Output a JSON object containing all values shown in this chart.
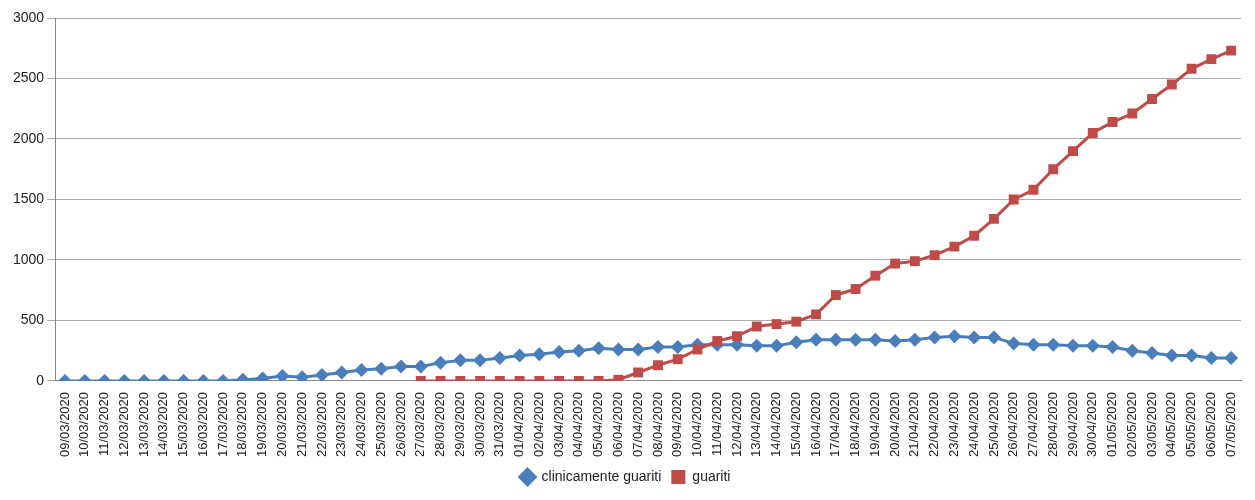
{
  "chart_data": {
    "type": "line",
    "categories": [
      "09/03/2020",
      "10/03/2020",
      "11/03/2020",
      "12/03/2020",
      "13/03/2020",
      "14/03/2020",
      "15/03/2020",
      "16/03/2020",
      "17/03/2020",
      "18/03/2020",
      "19/03/2020",
      "20/03/2020",
      "21/03/2020",
      "22/03/2020",
      "23/03/2020",
      "24/03/2020",
      "25/03/2020",
      "26/03/2020",
      "27/03/2020",
      "28/03/2020",
      "29/03/2020",
      "30/03/2020",
      "31/03/2020",
      "01/04/2020",
      "02/04/2020",
      "03/04/2020",
      "04/04/2020",
      "05/04/2020",
      "06/04/2020",
      "07/04/2020",
      "08/04/2020",
      "09/04/2020",
      "10/04/2020",
      "11/04/2020",
      "12/04/2020",
      "13/04/2020",
      "14/04/2020",
      "15/04/2020",
      "16/04/2020",
      "17/04/2020",
      "18/04/2020",
      "19/04/2020",
      "20/04/2020",
      "21/04/2020",
      "22/04/2020",
      "23/04/2020",
      "24/04/2020",
      "25/04/2020",
      "26/04/2020",
      "27/04/2020",
      "28/04/2020",
      "29/04/2020",
      "30/04/2020",
      "01/05/2020",
      "02/05/2020",
      "03/05/2020",
      "04/05/2020",
      "05/05/2020",
      "06/05/2020",
      "07/05/2020"
    ],
    "series": [
      {
        "name": "clinicamente guariti",
        "color": "#4a7ebb",
        "marker": "diamond",
        "values": [
          0,
          0,
          0,
          0,
          0,
          0,
          0,
          0,
          0,
          10,
          20,
          40,
          30,
          50,
          70,
          90,
          100,
          120,
          120,
          150,
          170,
          170,
          190,
          210,
          220,
          240,
          250,
          270,
          260,
          260,
          280,
          280,
          300,
          300,
          300,
          290,
          290,
          320,
          340,
          340,
          340,
          340,
          330,
          340,
          360,
          370,
          360,
          360,
          310,
          300,
          300,
          290,
          290,
          280,
          250,
          230,
          210,
          210,
          190,
          190
        ]
      },
      {
        "name": "guariti",
        "color": "#be4b48",
        "marker": "square",
        "values": [
          null,
          null,
          null,
          null,
          null,
          null,
          null,
          null,
          null,
          null,
          null,
          null,
          null,
          null,
          null,
          null,
          null,
          null,
          0,
          0,
          0,
          0,
          0,
          0,
          0,
          0,
          0,
          0,
          10,
          70,
          130,
          180,
          260,
          330,
          370,
          450,
          470,
          490,
          550,
          710,
          760,
          870,
          970,
          990,
          1040,
          1110,
          1200,
          1340,
          1500,
          1580,
          1750,
          1900,
          2050,
          2140,
          2210,
          2330,
          2450,
          2580,
          2660,
          2730
        ]
      }
    ],
    "ylim": [
      0,
      3000
    ],
    "yticks": [
      0,
      500,
      1000,
      1500,
      2000,
      2500,
      3000
    ],
    "grid": "y",
    "legend": "bottom",
    "line_style": "solid"
  }
}
